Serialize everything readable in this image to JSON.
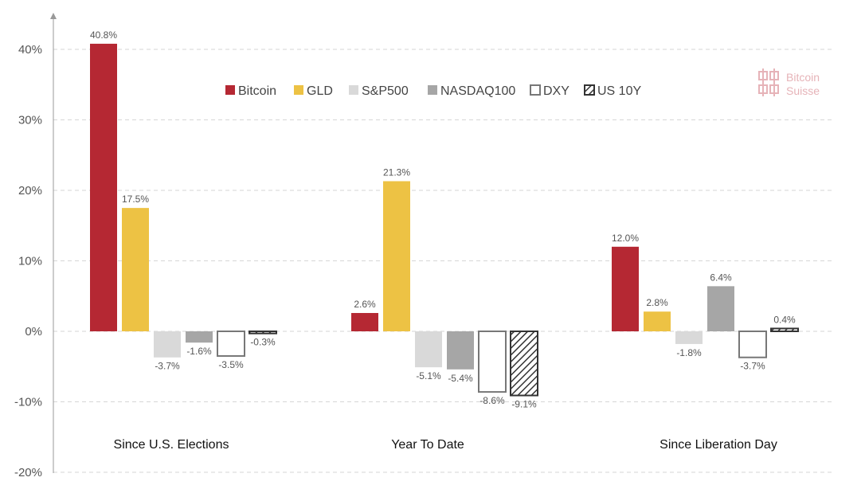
{
  "brand": {
    "line1": "Bitcoin",
    "line2": "Suisse",
    "color": "#e6b3b8"
  },
  "chart_data": {
    "type": "bar",
    "categories": [
      "Since U.S. Elections",
      "Year To Date",
      "Since Liberation Day"
    ],
    "series": [
      {
        "name": "Bitcoin",
        "values": [
          40.8,
          2.6,
          12.0
        ],
        "labels": [
          "40.8%",
          "2.6%",
          "12.0%"
        ],
        "fill": "#b52833",
        "stroke": "none",
        "pattern": "solid"
      },
      {
        "name": "GLD",
        "values": [
          17.5,
          21.3,
          2.8
        ],
        "labels": [
          "17.5%",
          "21.3%",
          "2.8%"
        ],
        "fill": "#edc244",
        "stroke": "none",
        "pattern": "solid"
      },
      {
        "name": "S&P500",
        "values": [
          -3.7,
          -5.1,
          -1.8
        ],
        "labels": [
          "-3.7%",
          "-5.1%",
          "-1.8%"
        ],
        "fill": "#d9d9d9",
        "stroke": "none",
        "pattern": "solid"
      },
      {
        "name": "NASDAQ100",
        "values": [
          -1.6,
          -5.4,
          6.4
        ],
        "labels": [
          "-1.6%",
          "-5.4%",
          "6.4%"
        ],
        "fill": "#a6a6a6",
        "stroke": "none",
        "pattern": "solid"
      },
      {
        "name": "DXY",
        "values": [
          -3.5,
          -8.6,
          -3.7
        ],
        "labels": [
          "-3.5%",
          "-8.6%",
          "-3.7%"
        ],
        "fill": "#ffffff",
        "stroke": "#777777",
        "pattern": "outline"
      },
      {
        "name": "US 10Y",
        "values": [
          -0.3,
          -9.1,
          0.4
        ],
        "labels": [
          "-0.3%",
          "-9.1%",
          "0.4%"
        ],
        "fill": "#ffffff",
        "stroke": "#333333",
        "pattern": "hatch"
      }
    ],
    "ylim": [
      -20,
      40
    ],
    "yticks": [
      40,
      30,
      20,
      10,
      0,
      -10,
      -20
    ],
    "ytick_labels": [
      "40%",
      "30%",
      "20%",
      "10%",
      "0%",
      "-10%",
      "-20%"
    ],
    "grid": true,
    "legend_position": "top-center"
  }
}
